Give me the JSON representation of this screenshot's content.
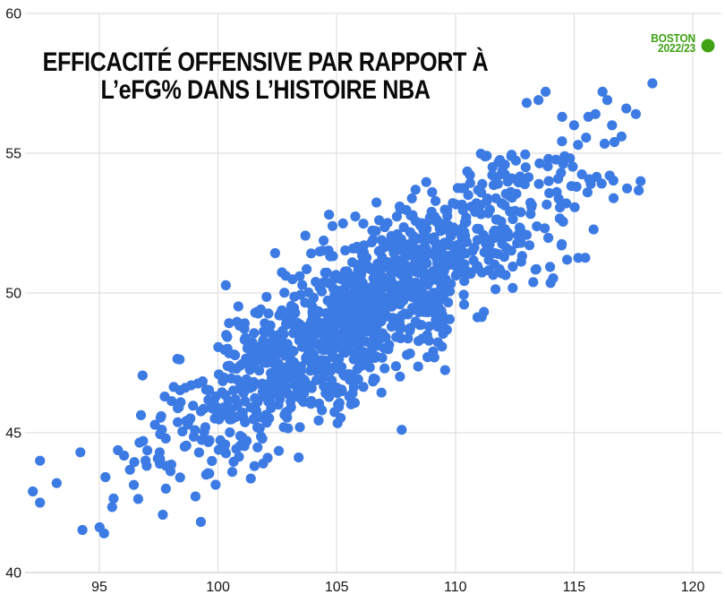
{
  "title": {
    "line1": "EFFICACITÉ OFFENSIVE PAR RAPPORT À",
    "line2": "L’eFG% DANS L’HISTOIRE NBA"
  },
  "legend": {
    "team": "BOSTON",
    "season": "2022/23",
    "color": "#3fa315"
  },
  "chart_data": {
    "type": "scatter",
    "title": "EFFICACITÉ OFFENSIVE PAR RAPPORT À L’eFG% DANS L’HISTOIRE NBA",
    "xlabel": "",
    "ylabel": "",
    "x_axis": {
      "ticks": [
        95,
        100,
        105,
        110,
        115,
        120
      ],
      "range": [
        91.9,
        121.3
      ]
    },
    "y_axis": {
      "ticks": [
        40,
        45,
        50,
        55,
        60
      ],
      "range": [
        40,
        60
      ]
    },
    "grid": true,
    "point_color": "#3d7be4",
    "point_radius": 5.6,
    "grid_color": "#dadada",
    "axis_line_color": "#c4c4c4",
    "legend_marker": {
      "label": "BOSTON 2022/23",
      "color": "#3fa315"
    },
    "cloud_generator": {
      "comment": "dense historical NBA team-season cloud: eFG% vs offensive rating, strong positive correlation",
      "seed": 11,
      "count": 1255,
      "x_mean": 106.1,
      "x_sd": 4.15,
      "slope": 0.52,
      "intercept": -5.8,
      "noise_sd": 1.42,
      "x_min": 92.0,
      "x_max": 118.4,
      "y_min": 41.3,
      "y_max": 57.6
    },
    "notable_points": [
      [
        92.2,
        42.9
      ],
      [
        92.5,
        42.5
      ],
      [
        92.5,
        44.0
      ],
      [
        93.2,
        43.2
      ],
      [
        94.2,
        44.3
      ],
      [
        95.2,
        41.4
      ],
      [
        97.8,
        43.0
      ],
      [
        98.4,
        43.4
      ],
      [
        99.5,
        43.5
      ],
      [
        100.6,
        43.6
      ],
      [
        101.9,
        43.9
      ],
      [
        113.0,
        56.8
      ],
      [
        113.5,
        56.9
      ],
      [
        113.8,
        57.2
      ],
      [
        114.5,
        56.3
      ],
      [
        115.0,
        56.0
      ],
      [
        115.6,
        56.3
      ],
      [
        115.9,
        56.4
      ],
      [
        116.2,
        57.2
      ],
      [
        116.4,
        56.9
      ],
      [
        116.6,
        56.0
      ],
      [
        116.7,
        55.4
      ],
      [
        117.0,
        55.6
      ],
      [
        117.2,
        56.6
      ],
      [
        117.6,
        56.4
      ],
      [
        118.3,
        57.5
      ],
      [
        117.8,
        54.0
      ],
      [
        116.5,
        54.2
      ],
      [
        115.1,
        53.8
      ],
      [
        115.7,
        53.9
      ]
    ]
  }
}
